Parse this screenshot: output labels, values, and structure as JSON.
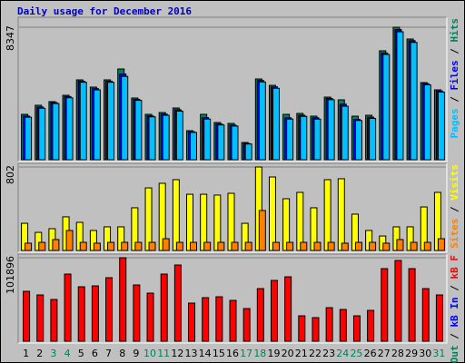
{
  "title": "Daily usage for December 2016",
  "categories": [
    1,
    2,
    3,
    4,
    5,
    6,
    7,
    8,
    9,
    10,
    11,
    12,
    13,
    14,
    15,
    16,
    17,
    18,
    19,
    20,
    21,
    22,
    23,
    24,
    25,
    26,
    27,
    28,
    29,
    30,
    31
  ],
  "category_colors": [
    "#000000",
    "#000000",
    "#00805c",
    "#00805c",
    "#000000",
    "#000000",
    "#000000",
    "#000000",
    "#000000",
    "#00805c",
    "#00805c",
    "#000000",
    "#000000",
    "#000000",
    "#000000",
    "#000000",
    "#00805c",
    "#00805c",
    "#000000",
    "#000000",
    "#000000",
    "#000000",
    "#000000",
    "#00805c",
    "#00805c",
    "#000000",
    "#000000",
    "#000000",
    "#000000",
    "#000000",
    "#00805c"
  ],
  "legend_separator": "/",
  "chart_data": [
    {
      "type": "bar",
      "ylim": [
        0,
        8347
      ],
      "yticks": [
        8347
      ],
      "grid": true,
      "series": [
        {
          "name": "Hits",
          "color": "#00805c",
          "values": [
            2859,
            3430,
            3659,
            4059,
            5031,
            4574,
            5031,
            5717,
            3888,
            2859,
            2973,
            3259,
            1829,
            2859,
            2344,
            2287,
            1086,
            5088,
            4688,
            2859,
            2916,
            2744,
            3945,
            3773,
            2744,
            2801,
            6861,
            8347,
            7604,
            4859,
            4402
          ]
        },
        {
          "name": "Files",
          "color": "#0000ff",
          "values": [
            2750,
            3320,
            3600,
            3980,
            4950,
            4480,
            4950,
            5400,
            3800,
            2760,
            2870,
            3150,
            1760,
            2650,
            2250,
            2180,
            1020,
            4990,
            4590,
            2640,
            2800,
            2640,
            3860,
            3500,
            2540,
            2680,
            6720,
            8200,
            7500,
            4790,
            4330
          ]
        },
        {
          "name": "Pages",
          "color": "#00c0ff",
          "values": [
            2680,
            3240,
            3540,
            3900,
            4880,
            4400,
            4880,
            5250,
            3740,
            2700,
            2800,
            3060,
            1720,
            2560,
            2190,
            2120,
            990,
            4900,
            4500,
            2560,
            2730,
            2560,
            3780,
            3370,
            2470,
            2600,
            6630,
            8060,
            7390,
            4720,
            4260
          ]
        }
      ]
    },
    {
      "type": "bar",
      "ylim": [
        0,
        802
      ],
      "yticks": [
        802
      ],
      "grid": true,
      "series": [
        {
          "name": "Visits",
          "color": "#ffff00",
          "values": [
            261,
            174,
            209,
            323,
            270,
            192,
            227,
            227,
            410,
            601,
            645,
            680,
            540,
            540,
            532,
            549,
            261,
            802,
            706,
            497,
            558,
            410,
            680,
            689,
            349,
            192,
            139,
            227,
            227,
            418,
            558
          ]
        },
        {
          "name": "Sites",
          "color": "#ff8000",
          "values": [
            70,
            78,
            105,
            192,
            78,
            70,
            78,
            78,
            78,
            78,
            113,
            78,
            78,
            78,
            78,
            78,
            78,
            384,
            78,
            78,
            78,
            78,
            78,
            70,
            78,
            78,
            70,
            105,
            78,
            78,
            113
          ]
        }
      ]
    },
    {
      "type": "bar",
      "ylim": [
        0,
        101896
      ],
      "yticks": [
        101896
      ],
      "grid": true,
      "series": [
        {
          "name": "kB F",
          "color": "#ff0000",
          "values": [
            60916,
            56486,
            50948,
            81961,
            66454,
            67562,
            77530,
            101896,
            68670,
            58701,
            81961,
            93036,
            46518,
            53164,
            54271,
            49840,
            39872,
            64239,
            74207,
            78637,
            31012,
            28797,
            40980,
            38765,
            31012,
            37657,
            88605,
            98573,
            88605,
            64239,
            56486
          ]
        },
        {
          "name": "kB In",
          "color": "#0000ff",
          "values": [
            null,
            null,
            null,
            null,
            null,
            null,
            null,
            null,
            null,
            null,
            null,
            null,
            null,
            null,
            null,
            null,
            null,
            null,
            null,
            null,
            null,
            null,
            null,
            null,
            null,
            null,
            null,
            null,
            null,
            null,
            null
          ]
        },
        {
          "name": "kB Out",
          "color": "#00805c",
          "values": [
            null,
            null,
            null,
            null,
            null,
            null,
            null,
            null,
            null,
            null,
            null,
            null,
            null,
            null,
            null,
            null,
            null,
            null,
            null,
            null,
            null,
            null,
            null,
            null,
            null,
            null,
            null,
            null,
            null,
            null,
            null
          ]
        }
      ]
    }
  ]
}
